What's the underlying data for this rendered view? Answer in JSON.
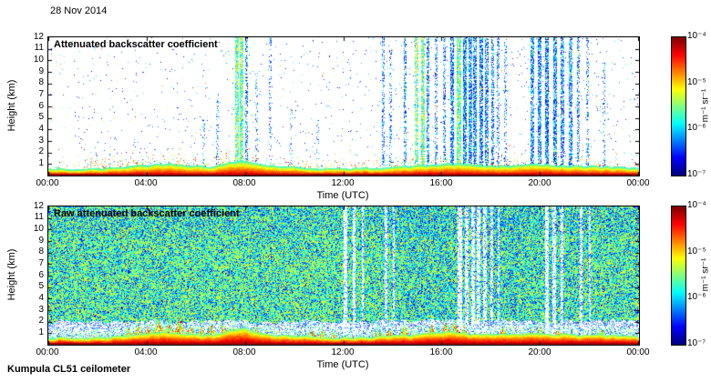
{
  "page": {
    "date_label": "28 Nov 2014",
    "footer_label": "Kumpula CL51 ceilometer"
  },
  "chart_data": [
    {
      "type": "heatmap",
      "title": "Attenuated backscatter coefficient",
      "xlabel": "Time (UTC)",
      "ylabel": "Height (km)",
      "x_tick_labels": [
        "00:00",
        "04:00",
        "08:00",
        "12:00",
        "16:00",
        "20:00",
        "00:00"
      ],
      "x_range_hours": [
        0,
        24
      ],
      "y_tick_values": [
        1,
        2,
        3,
        4,
        5,
        6,
        7,
        8,
        9,
        10,
        11,
        12
      ],
      "y_range_km": [
        0,
        12
      ],
      "colorbar": {
        "label": "m⁻¹ sr⁻¹",
        "tick_labels": [
          "10⁻⁴",
          "10⁻⁵",
          "10⁻⁶",
          "10⁻⁷"
        ],
        "scale": "log",
        "min": "10⁻⁷",
        "max": "10⁻⁴",
        "colormap": "jet"
      },
      "render": {
        "seed": 42,
        "style": "sparse",
        "bg_speckle_density": 0.012,
        "speckle_clusters": [
          [
            0.06,
            0.36,
            2.6,
            0.12
          ],
          [
            0.38,
            0.54,
            1.5,
            0.04
          ],
          [
            0.55,
            0.79,
            2.2,
            0.06
          ],
          [
            0.8,
            1.0,
            2.0,
            0.05
          ]
        ],
        "layer_points": [
          [
            0,
            0.55
          ],
          [
            0.05,
            0.5
          ],
          [
            0.1,
            0.6
          ],
          [
            0.14,
            0.8
          ],
          [
            0.18,
            0.95
          ],
          [
            0.21,
            1.05
          ],
          [
            0.24,
            0.85
          ],
          [
            0.28,
            0.75
          ],
          [
            0.31,
            1.15
          ],
          [
            0.335,
            1.3
          ],
          [
            0.36,
            0.95
          ],
          [
            0.4,
            0.75
          ],
          [
            0.45,
            0.6
          ],
          [
            0.5,
            0.55
          ],
          [
            0.56,
            0.65
          ],
          [
            0.6,
            0.75
          ],
          [
            0.65,
            0.9
          ],
          [
            0.68,
            1.0
          ],
          [
            0.72,
            0.9
          ],
          [
            0.76,
            0.8
          ],
          [
            0.8,
            0.85
          ],
          [
            0.84,
            0.95
          ],
          [
            0.88,
            0.8
          ],
          [
            0.92,
            0.8
          ],
          [
            0.96,
            0.7
          ],
          [
            1,
            0.65
          ]
        ],
        "layer_scale": 1.0,
        "layer_jitter": 0.08,
        "spikes": [],
        "streaks": [
          [
            0.262,
            2,
            5,
            0.25,
            0
          ],
          [
            0.285,
            2,
            7,
            0.3,
            0
          ],
          [
            0.318,
            3,
            12,
            0.85,
            1
          ],
          [
            0.327,
            3,
            12,
            0.9,
            1
          ],
          [
            0.335,
            2,
            12,
            0.5,
            0
          ],
          [
            0.352,
            2,
            9,
            0.2,
            0
          ],
          [
            0.375,
            2,
            12,
            0.25,
            0
          ],
          [
            0.41,
            2,
            6,
            0.15,
            0
          ],
          [
            0.455,
            2,
            5,
            0.12,
            0
          ],
          [
            0.566,
            2,
            12,
            0.5,
            0
          ],
          [
            0.578,
            2,
            11,
            0.3,
            0
          ],
          [
            0.604,
            2,
            12,
            0.5,
            0
          ],
          [
            0.622,
            3,
            12,
            0.7,
            1
          ],
          [
            0.633,
            3,
            12,
            0.85,
            1
          ],
          [
            0.642,
            2,
            12,
            0.6,
            0
          ],
          [
            0.656,
            2,
            12,
            0.45,
            0
          ],
          [
            0.67,
            2,
            12,
            0.5,
            0
          ],
          [
            0.683,
            3,
            12,
            0.8,
            0
          ],
          [
            0.694,
            4,
            12,
            0.9,
            1
          ],
          [
            0.704,
            3,
            12,
            0.85,
            0
          ],
          [
            0.713,
            3,
            12,
            0.8,
            0
          ],
          [
            0.722,
            3,
            12,
            0.75,
            0
          ],
          [
            0.732,
            3,
            12,
            0.8,
            0
          ],
          [
            0.741,
            3,
            12,
            0.7,
            0
          ],
          [
            0.751,
            2,
            12,
            0.6,
            0
          ],
          [
            0.761,
            2,
            12,
            0.45,
            0
          ],
          [
            0.773,
            2,
            12,
            0.3,
            0
          ],
          [
            0.818,
            3,
            12,
            0.7,
            0
          ],
          [
            0.831,
            3,
            12,
            0.8,
            0
          ],
          [
            0.844,
            3,
            12,
            0.85,
            0
          ],
          [
            0.857,
            3,
            12,
            0.8,
            0
          ],
          [
            0.87,
            3,
            12,
            0.75,
            0
          ],
          [
            0.883,
            3,
            12,
            0.7,
            0
          ],
          [
            0.896,
            2,
            12,
            0.5,
            0
          ],
          [
            0.912,
            2,
            12,
            0.35,
            0
          ],
          [
            0.94,
            2,
            10,
            0.2,
            0
          ]
        ]
      }
    },
    {
      "type": "heatmap",
      "title": "Raw attenuated backscatter coefficient",
      "xlabel": "Time (UTC)",
      "ylabel": "Height (km)",
      "x_tick_labels": [
        "00:00",
        "04:00",
        "08:00",
        "12:00",
        "16:00",
        "20:00",
        "00:00"
      ],
      "x_range_hours": [
        0,
        24
      ],
      "y_tick_values": [
        1,
        2,
        3,
        4,
        5,
        6,
        7,
        8,
        9,
        10,
        11,
        12
      ],
      "y_range_km": [
        0,
        12
      ],
      "colorbar": {
        "label": "m⁻¹ sr⁻¹",
        "tick_labels": [
          "10⁻⁴",
          "10⁻⁵",
          "10⁻⁶",
          "10⁻⁷"
        ],
        "scale": "log",
        "min": "10⁻⁷",
        "max": "10⁻⁴",
        "colormap": "jet"
      },
      "render": {
        "seed": 7,
        "style": "dense",
        "band_top_km": 2.05,
        "band_speckle_density": 0.38,
        "layer_points": [
          [
            0,
            0.55
          ],
          [
            0.05,
            0.5
          ],
          [
            0.1,
            0.6
          ],
          [
            0.14,
            0.8
          ],
          [
            0.18,
            0.95
          ],
          [
            0.21,
            1.05
          ],
          [
            0.24,
            0.85
          ],
          [
            0.28,
            0.75
          ],
          [
            0.31,
            1.15
          ],
          [
            0.335,
            1.3
          ],
          [
            0.36,
            0.95
          ],
          [
            0.4,
            0.75
          ],
          [
            0.45,
            0.6
          ],
          [
            0.5,
            0.55
          ],
          [
            0.56,
            0.65
          ],
          [
            0.6,
            0.75
          ],
          [
            0.65,
            0.9
          ],
          [
            0.68,
            1.0
          ],
          [
            0.72,
            0.9
          ],
          [
            0.76,
            0.8
          ],
          [
            0.8,
            0.85
          ],
          [
            0.84,
            0.95
          ],
          [
            0.88,
            0.8
          ],
          [
            0.92,
            0.8
          ],
          [
            0.96,
            0.7
          ],
          [
            1,
            0.65
          ]
        ],
        "layer_scale": 1.05,
        "layer_jitter": 0.1,
        "spikes": [
          [
            0.135,
            0.8,
            4
          ],
          [
            0.152,
            1.1,
            5
          ],
          [
            0.168,
            0.9,
            4
          ],
          [
            0.186,
            1.3,
            6
          ],
          [
            0.203,
            1.0,
            5
          ],
          [
            0.222,
            1.5,
            6
          ],
          [
            0.24,
            1.1,
            5
          ],
          [
            0.258,
            0.9,
            4
          ],
          [
            0.276,
            1.2,
            5
          ],
          [
            0.295,
            0.8,
            4
          ],
          [
            0.35,
            0.6,
            4
          ],
          [
            0.445,
            0.7,
            5
          ],
          [
            0.463,
            0.8,
            5
          ],
          [
            0.482,
            0.6,
            4
          ],
          [
            0.557,
            0.6,
            4
          ],
          [
            0.576,
            0.7,
            4
          ],
          [
            0.602,
            0.8,
            5
          ],
          [
            0.648,
            0.7,
            4
          ],
          [
            0.672,
            0.9,
            5
          ],
          [
            0.688,
            1.1,
            5
          ],
          [
            0.703,
            0.8,
            4
          ],
          [
            0.77,
            0.5,
            4
          ],
          [
            0.832,
            0.7,
            4
          ],
          [
            0.862,
            0.6,
            4
          ],
          [
            0.937,
            0.5,
            4
          ]
        ],
        "white_streaks": [
          [
            0.503,
            4,
            0.12
          ],
          [
            0.517,
            3,
            0.15
          ],
          [
            0.532,
            2,
            0.25
          ],
          [
            0.571,
            3,
            0.25
          ],
          [
            0.584,
            2,
            0.3
          ],
          [
            0.696,
            5,
            0.15
          ],
          [
            0.707,
            4,
            0.2
          ],
          [
            0.718,
            4,
            0.22
          ],
          [
            0.728,
            4,
            0.2
          ],
          [
            0.739,
            4,
            0.22
          ],
          [
            0.75,
            3,
            0.28
          ],
          [
            0.762,
            2,
            0.3
          ],
          [
            0.843,
            4,
            0.15
          ],
          [
            0.856,
            4,
            0.18
          ],
          [
            0.869,
            3,
            0.22
          ],
          [
            0.902,
            3,
            0.28
          ],
          [
            0.916,
            2,
            0.32
          ]
        ]
      }
    }
  ]
}
